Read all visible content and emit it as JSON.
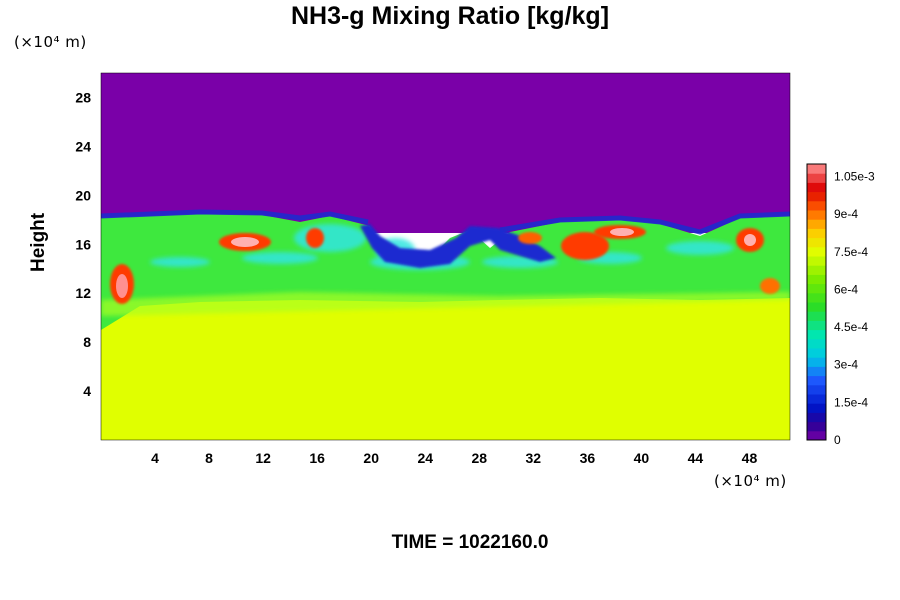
{
  "chart_data": {
    "type": "heatmap",
    "title": "NH3-g Mixing Ratio [kg/kg]",
    "ylabel": "Height",
    "y_unit": "(×10⁴ m)",
    "x_unit": "(×10⁴ m)",
    "footer": "TIME = 1022160.0",
    "xlim": [
      0,
      51
    ],
    "ylim": [
      0,
      30
    ],
    "x_ticks": [
      "4",
      "8",
      "12",
      "16",
      "20",
      "24",
      "28",
      "32",
      "36",
      "40",
      "44",
      "48"
    ],
    "y_ticks": [
      "4",
      "8",
      "12",
      "16",
      "20",
      "24",
      "28"
    ],
    "colorbar": {
      "range": [
        0,
        0.0011
      ],
      "tick_labels": [
        "0",
        "1.5e-4",
        "3e-4",
        "4.5e-4",
        "6e-4",
        "7.5e-4",
        "9e-4",
        "1.05e-3"
      ],
      "tick_values": [
        0,
        0.00015,
        0.0003,
        0.00045,
        0.0006,
        0.00075,
        0.0009,
        0.00105
      ]
    },
    "field_summary": [
      {
        "region": "upper layer",
        "height_range": [
          18,
          30
        ],
        "value": 0
      },
      {
        "region": "mixing layer",
        "height_range": [
          11.5,
          18
        ],
        "value_range": [
          0.00015,
          0.00105
        ]
      },
      {
        "region": "lower layer",
        "height_range": [
          0,
          11.5
        ],
        "value": 0.00075
      }
    ],
    "colors": {
      "upper": "#7a00a8",
      "lower": "#e0ff00"
    }
  }
}
